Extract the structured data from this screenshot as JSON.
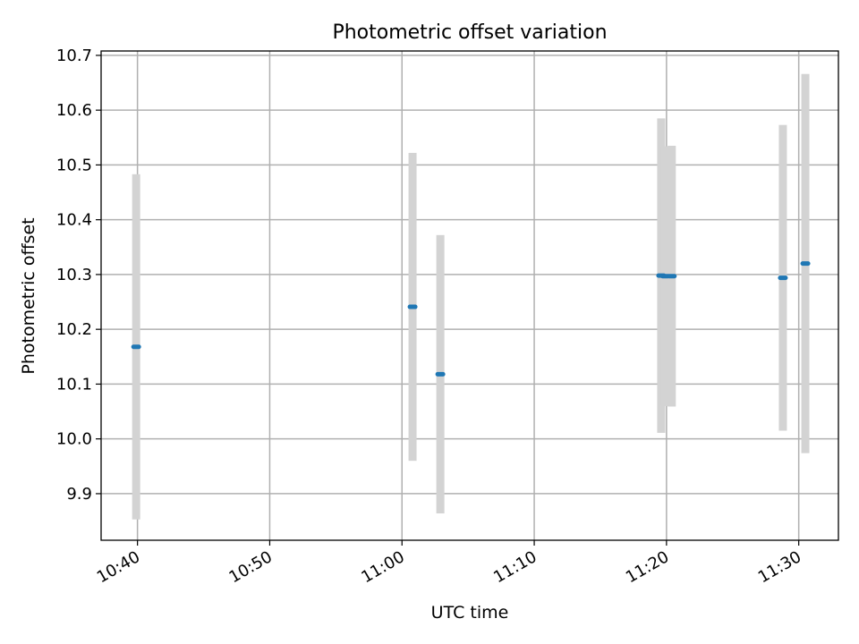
{
  "chart_data": {
    "type": "scatter",
    "title": "Photometric offset variation",
    "xlabel": "UTC time",
    "ylabel": "Photometric offset",
    "x_tick_labels": [
      "10:40",
      "10:50",
      "11:00",
      "11:10",
      "11:20",
      "11:30"
    ],
    "x_ticks": [
      "10:40",
      "10:50",
      "11:00",
      "11:10",
      "11:20",
      "11:30"
    ],
    "y_ticks": [
      9.9,
      10.0,
      10.1,
      10.2,
      10.3,
      10.4,
      10.5,
      10.6,
      10.7
    ],
    "y_tick_labels": [
      "9.9",
      "10.0",
      "10.1",
      "10.2",
      "10.3",
      "10.4",
      "10.5",
      "10.6",
      "10.7"
    ],
    "xlim": [
      "10:37:15",
      "11:33:00"
    ],
    "ylim": [
      9.815,
      10.708
    ],
    "grid": true,
    "marker_color": "#1f77b4",
    "errorbar_color": "#d3d3d3",
    "points": [
      {
        "x": "10:39:54",
        "y": 10.168,
        "err": 0.315
      },
      {
        "x": "11:00:48",
        "y": 10.241,
        "err": 0.281
      },
      {
        "x": "11:02:54",
        "y": 10.118,
        "err": 0.254
      },
      {
        "x": "11:19:36",
        "y": 10.298,
        "err": 0.287
      },
      {
        "x": "11:19:54",
        "y": 10.297,
        "err": 0.237
      },
      {
        "x": "11:20:24",
        "y": 10.297,
        "err": 0.238
      },
      {
        "x": "11:28:48",
        "y": 10.294,
        "err": 0.279
      },
      {
        "x": "11:30:30",
        "y": 10.32,
        "err": 0.346
      }
    ]
  }
}
